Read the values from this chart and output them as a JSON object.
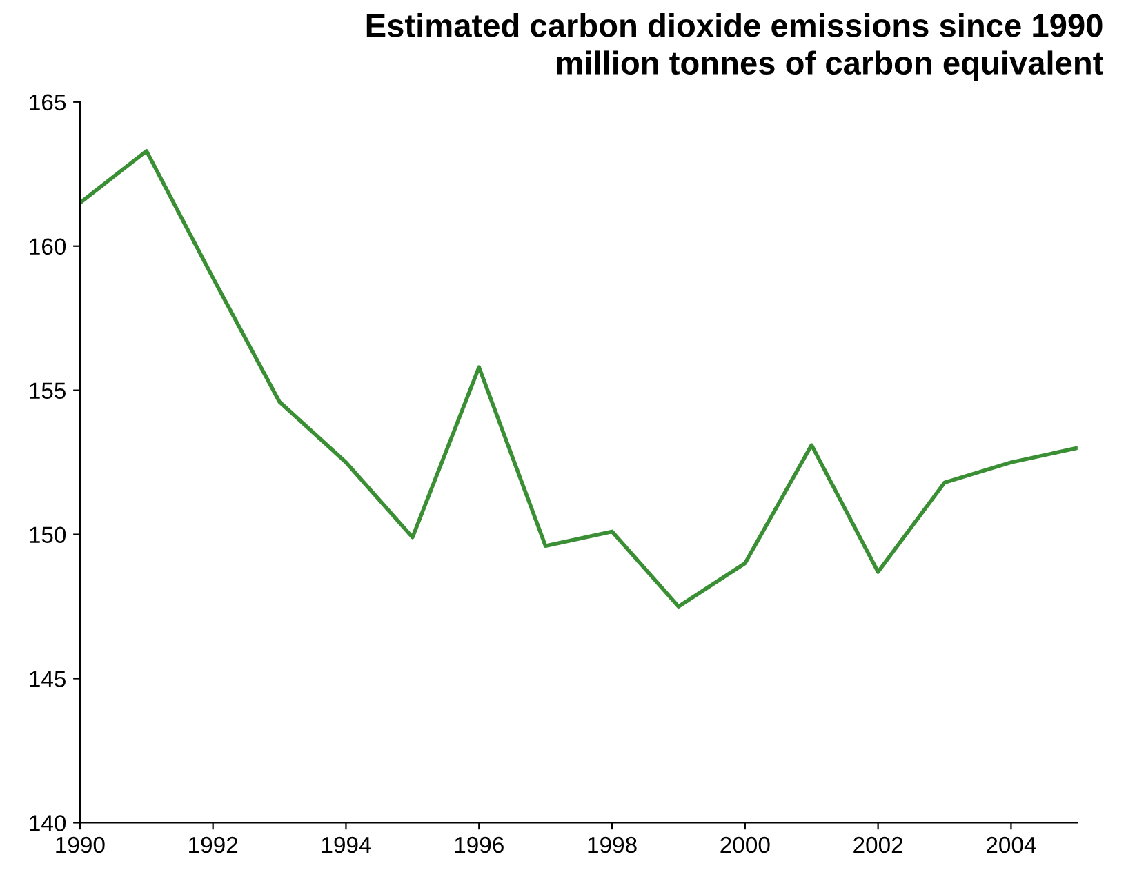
{
  "chart_data": {
    "type": "line",
    "title": "Estimated carbon dioxide emissions since 1990\nmillion tonnes of carbon equivalent",
    "x": [
      1990,
      1991,
      1992,
      1993,
      1994,
      1995,
      1996,
      1997,
      1998,
      1999,
      2000,
      2001,
      2002,
      2003,
      2004,
      2005
    ],
    "series": [
      {
        "color": "#3a8f34",
        "values": [
          161.5,
          163.3,
          158.9,
          154.6,
          152.5,
          149.9,
          155.8,
          149.6,
          150.1,
          147.5,
          149.0,
          153.1,
          148.7,
          151.8,
          152.5,
          153.0
        ]
      }
    ],
    "xlim": [
      1990,
      2005
    ],
    "xticks": [
      1990,
      1992,
      1994,
      1996,
      1998,
      2000,
      2002,
      2004
    ],
    "ylim": [
      140,
      165
    ],
    "yticks": [
      140,
      145,
      150,
      155,
      160,
      165
    ],
    "grid": false,
    "legend": false,
    "marker": "none",
    "line_style": "solid"
  }
}
